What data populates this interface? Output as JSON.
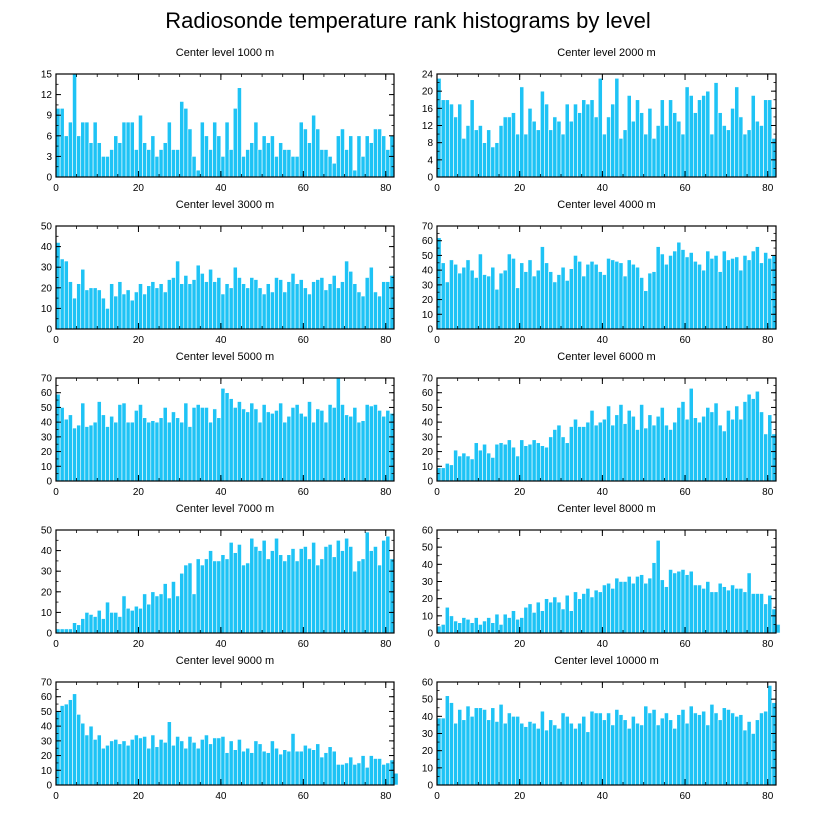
{
  "title": "Radiosonde temperature rank histograms by level",
  "colors": {
    "bar": "#1ec3f5",
    "bar_stroke": "#ffffff",
    "axis": "#000000"
  },
  "chart_data": [
    {
      "type": "bar",
      "title": "Center level 1000 m",
      "ylim": [
        0,
        15
      ],
      "yticks": [
        0,
        3,
        6,
        9,
        12,
        15
      ],
      "xlim": [
        0,
        82
      ],
      "xticks": [
        0,
        20,
        40,
        60,
        80
      ],
      "values": [
        10,
        10,
        6,
        8,
        15,
        6,
        8,
        8,
        5,
        8,
        5,
        3,
        3,
        4,
        6,
        5,
        8,
        8,
        8,
        4,
        9,
        5,
        4,
        6,
        3,
        4,
        5,
        8,
        4,
        4,
        11,
        10,
        7,
        3,
        1,
        8,
        6,
        4,
        8,
        6,
        3,
        8,
        4,
        10,
        13,
        3,
        4,
        5,
        8,
        4,
        6,
        5,
        6,
        3,
        5,
        4,
        4,
        3,
        3,
        8,
        7,
        5,
        9,
        7,
        4,
        4,
        3,
        2,
        6,
        7,
        4,
        6,
        1,
        6,
        3,
        6,
        5,
        7,
        7,
        6,
        4,
        6
      ]
    },
    {
      "type": "bar",
      "title": "Center level 2000 m",
      "ylim": [
        0,
        24
      ],
      "yticks": [
        0,
        4,
        8,
        12,
        16,
        20,
        24
      ],
      "xlim": [
        0,
        82
      ],
      "xticks": [
        0,
        20,
        40,
        60,
        80
      ],
      "values": [
        23,
        18,
        18,
        17,
        14,
        17,
        9,
        12,
        18,
        11,
        12,
        8,
        11,
        7,
        8,
        12,
        14,
        14,
        15,
        10,
        21,
        10,
        16,
        13,
        11,
        20,
        17,
        11,
        14,
        13,
        10,
        17,
        13,
        17,
        15,
        18,
        17,
        18,
        14,
        23,
        10,
        14,
        17,
        23,
        9,
        11,
        19,
        13,
        18,
        15,
        10,
        16,
        9,
        12,
        18,
        12,
        18,
        15,
        13,
        10,
        21,
        19,
        15,
        18,
        19,
        20,
        10,
        22,
        15,
        12,
        11,
        16,
        21,
        14,
        10,
        11,
        19,
        13,
        12,
        18,
        18,
        9
      ]
    },
    {
      "type": "bar",
      "title": "Center level 3000 m",
      "ylim": [
        0,
        50
      ],
      "yticks": [
        0,
        10,
        20,
        30,
        40,
        50
      ],
      "xlim": [
        0,
        82
      ],
      "xticks": [
        0,
        20,
        40,
        60,
        80
      ],
      "values": [
        42,
        34,
        33,
        23,
        15,
        22,
        29,
        19,
        20,
        20,
        19,
        15,
        10,
        22,
        16,
        23,
        17,
        19,
        14,
        18,
        22,
        17,
        21,
        23,
        20,
        22,
        18,
        24,
        25,
        33,
        22,
        26,
        22,
        24,
        31,
        27,
        23,
        29,
        23,
        25,
        17,
        22,
        20,
        30,
        25,
        22,
        20,
        25,
        24,
        20,
        17,
        22,
        18,
        25,
        24,
        18,
        23,
        27,
        22,
        24,
        20,
        17,
        23,
        24,
        25,
        19,
        22,
        26,
        20,
        23,
        33,
        28,
        22,
        18,
        16,
        25,
        30,
        18,
        16,
        23,
        23,
        26
      ]
    },
    {
      "type": "bar",
      "title": "Center level 4000 m",
      "ylim": [
        0,
        70
      ],
      "yticks": [
        0,
        10,
        20,
        30,
        40,
        50,
        60,
        70
      ],
      "xlim": [
        0,
        82
      ],
      "xticks": [
        0,
        20,
        40,
        60,
        80
      ],
      "values": [
        62,
        45,
        32,
        47,
        44,
        38,
        42,
        47,
        40,
        35,
        51,
        37,
        36,
        42,
        27,
        38,
        40,
        51,
        48,
        28,
        45,
        39,
        47,
        36,
        40,
        56,
        45,
        39,
        32,
        37,
        42,
        33,
        41,
        50,
        46,
        36,
        44,
        46,
        44,
        39,
        37,
        48,
        47,
        46,
        45,
        36,
        47,
        44,
        42,
        35,
        26,
        38,
        39,
        56,
        51,
        44,
        50,
        53,
        59,
        54,
        49,
        52,
        46,
        44,
        40,
        53,
        48,
        50,
        39,
        53,
        47,
        48,
        49,
        40,
        50,
        47,
        53,
        56,
        45,
        52,
        48,
        50
      ]
    },
    {
      "type": "bar",
      "title": "Center level 5000 m",
      "ylim": [
        0,
        70
      ],
      "yticks": [
        0,
        10,
        20,
        30,
        40,
        50,
        60,
        70
      ],
      "xlim": [
        0,
        82
      ],
      "xticks": [
        0,
        20,
        40,
        60,
        80
      ],
      "values": [
        59,
        50,
        42,
        45,
        36,
        38,
        53,
        37,
        38,
        40,
        54,
        45,
        37,
        44,
        40,
        52,
        53,
        40,
        40,
        48,
        52,
        43,
        40,
        41,
        40,
        43,
        50,
        40,
        47,
        43,
        40,
        53,
        37,
        50,
        52,
        50,
        50,
        40,
        49,
        43,
        63,
        60,
        56,
        50,
        54,
        49,
        47,
        53,
        49,
        40,
        52,
        47,
        46,
        48,
        53,
        40,
        44,
        50,
        52,
        46,
        44,
        54,
        40,
        49,
        48,
        40,
        52,
        50,
        70,
        52,
        45,
        44,
        50,
        40,
        41,
        52,
        51,
        52,
        48,
        44,
        48,
        46
      ]
    },
    {
      "type": "bar",
      "title": "Center level 6000 m",
      "ylim": [
        0,
        70
      ],
      "yticks": [
        0,
        10,
        20,
        30,
        40,
        50,
        60,
        70
      ],
      "xlim": [
        0,
        82
      ],
      "xticks": [
        0,
        20,
        40,
        60,
        80
      ],
      "values": [
        9,
        9,
        12,
        11,
        21,
        17,
        19,
        17,
        15,
        26,
        21,
        25,
        19,
        16,
        25,
        26,
        25,
        28,
        23,
        17,
        28,
        24,
        25,
        28,
        26,
        24,
        23,
        30,
        35,
        38,
        30,
        26,
        37,
        42,
        37,
        37,
        40,
        48,
        38,
        40,
        42,
        51,
        38,
        45,
        52,
        39,
        48,
        44,
        35,
        52,
        36,
        45,
        38,
        44,
        50,
        38,
        35,
        40,
        50,
        54,
        42,
        63,
        43,
        40,
        44,
        50,
        47,
        53,
        38,
        34,
        48,
        42,
        51,
        42,
        54,
        59,
        56,
        61,
        47,
        32,
        45,
        32
      ]
    },
    {
      "type": "bar",
      "title": "Center level 7000 m",
      "ylim": [
        0,
        50
      ],
      "yticks": [
        0,
        10,
        20,
        30,
        40,
        50
      ],
      "xlim": [
        0,
        82
      ],
      "xticks": [
        0,
        20,
        40,
        60,
        80
      ],
      "values": [
        2,
        2,
        2,
        2,
        5,
        4,
        7,
        10,
        9,
        8,
        11,
        7,
        15,
        10,
        10,
        8,
        18,
        12,
        11,
        13,
        12,
        19,
        14,
        20,
        18,
        19,
        24,
        17,
        25,
        18,
        29,
        33,
        34,
        19,
        36,
        33,
        36,
        40,
        35,
        35,
        38,
        36,
        44,
        39,
        43,
        33,
        34,
        46,
        42,
        40,
        45,
        36,
        40,
        46,
        38,
        35,
        38,
        41,
        35,
        41,
        42,
        36,
        44,
        33,
        36,
        42,
        43,
        37,
        45,
        40,
        46,
        42,
        30,
        35,
        36,
        49,
        40,
        42,
        33,
        45,
        47,
        36
      ]
    },
    {
      "type": "bar",
      "title": "Center level 8000 m",
      "ylim": [
        0,
        60
      ],
      "yticks": [
        0,
        10,
        20,
        30,
        40,
        50,
        60
      ],
      "xlim": [
        0,
        82
      ],
      "xticks": [
        0,
        20,
        40,
        60,
        80
      ],
      "values": [
        4,
        5,
        15,
        10,
        7,
        6,
        9,
        8,
        6,
        9,
        5,
        7,
        9,
        6,
        11,
        5,
        11,
        9,
        13,
        8,
        9,
        15,
        17,
        12,
        18,
        13,
        20,
        18,
        21,
        18,
        14,
        22,
        13,
        24,
        20,
        23,
        26,
        21,
        25,
        24,
        28,
        29,
        26,
        32,
        30,
        30,
        33,
        29,
        33,
        34,
        29,
        32,
        41,
        54,
        31,
        27,
        37,
        35,
        36,
        37,
        34,
        36,
        28,
        28,
        26,
        30,
        24,
        24,
        29,
        27,
        25,
        28,
        26,
        26,
        24,
        35,
        23,
        23,
        23,
        17,
        22,
        14,
        5
      ]
    },
    {
      "type": "bar",
      "title": "Center level 9000 m",
      "ylim": [
        0,
        70
      ],
      "yticks": [
        0,
        10,
        20,
        30,
        40,
        50,
        60,
        70
      ],
      "xlim": [
        0,
        82
      ],
      "xticks": [
        0,
        20,
        40,
        60,
        80
      ],
      "values": [
        50,
        54,
        55,
        58,
        62,
        48,
        42,
        34,
        40,
        31,
        34,
        25,
        27,
        30,
        31,
        28,
        30,
        27,
        31,
        34,
        32,
        33,
        25,
        34,
        26,
        31,
        29,
        43,
        27,
        33,
        30,
        25,
        33,
        29,
        25,
        31,
        34,
        28,
        32,
        32,
        33,
        22,
        30,
        24,
        31,
        23,
        25,
        22,
        30,
        28,
        23,
        22,
        30,
        25,
        21,
        24,
        23,
        35,
        23,
        23,
        27,
        25,
        24,
        28,
        19,
        22,
        26,
        23,
        14,
        14,
        15,
        19,
        14,
        15,
        20,
        12,
        20,
        18,
        18,
        14,
        15,
        17,
        8
      ]
    },
    {
      "type": "bar",
      "title": "Center level 10000 m",
      "ylim": [
        0,
        60
      ],
      "yticks": [
        0,
        10,
        20,
        30,
        40,
        50,
        60
      ],
      "xlim": [
        0,
        82
      ],
      "xticks": [
        0,
        20,
        40,
        60,
        80
      ],
      "values": [
        39,
        39,
        52,
        48,
        36,
        44,
        38,
        46,
        40,
        45,
        45,
        44,
        38,
        45,
        37,
        47,
        36,
        42,
        40,
        40,
        36,
        34,
        37,
        36,
        33,
        43,
        32,
        38,
        35,
        33,
        42,
        40,
        36,
        33,
        36,
        40,
        31,
        43,
        42,
        42,
        38,
        42,
        35,
        44,
        41,
        38,
        33,
        40,
        36,
        35,
        46,
        42,
        44,
        35,
        39,
        42,
        38,
        33,
        41,
        44,
        36,
        46,
        42,
        41,
        43,
        35,
        47,
        42,
        38,
        45,
        44,
        42,
        40,
        41,
        32,
        37,
        30,
        38,
        42,
        43,
        58,
        48
      ]
    }
  ]
}
